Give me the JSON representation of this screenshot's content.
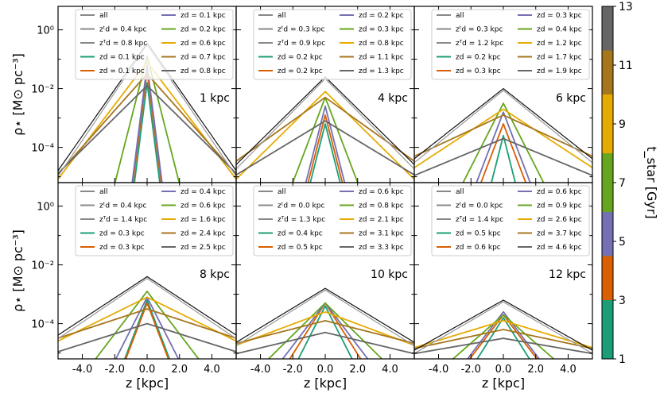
{
  "chart_data": {
    "type": "line",
    "xlabel": "z [kpc]",
    "ylabel": "ρ⋆ [M⊙ pc⁻³]",
    "xlim": [
      -5.5,
      5.5
    ],
    "ylim_log10": [
      -5.2,
      0.8
    ],
    "yscale": "log",
    "x_ticks": [
      -4,
      -2,
      0,
      2,
      4
    ],
    "x_tick_labels": [
      "-4.0",
      "-2.0",
      "0.0",
      "2.0",
      "4.0"
    ],
    "y_tick_labels": [
      "10⁰",
      "10⁻²",
      "10⁻⁴"
    ],
    "y_tick_exponents": [
      0,
      -2,
      -4
    ],
    "colorbar": {
      "label": "t_star [Gyr]",
      "ticks": [
        "1",
        "3",
        "5",
        "7",
        "9",
        "11",
        "13"
      ],
      "bands": [
        {
          "from": 1,
          "to": 3,
          "color": "#1b9e77"
        },
        {
          "from": 3,
          "to": 4.5,
          "color": "#d95f02"
        },
        {
          "from": 4.5,
          "to": 6,
          "color": "#7570b3"
        },
        {
          "from": 6,
          "to": 8,
          "color": "#66a61e"
        },
        {
          "from": 8,
          "to": 10,
          "color": "#e6ab02"
        },
        {
          "from": 10,
          "to": 11.5,
          "color": "#a6761d"
        },
        {
          "from": 11.5,
          "to": 13,
          "color": "#666666"
        }
      ]
    },
    "panels": [
      {
        "label": "1 kpc",
        "legend": [
          "all",
          "z_d^t = 0.4 kpc",
          "z_d^T = 0.8 kpc",
          "z_d = 0.1 kpc",
          "z_d = 0.1 kpc",
          "z_d = 0.1 kpc",
          "z_d = 0.2 kpc",
          "z_d = 0.6 kpc",
          "z_d = 0.7 kpc",
          "z_d = 0.8 kpc"
        ],
        "series": [
          {
            "name": "all",
            "zd": 0.55,
            "peak_log10": -0.45,
            "color": "#111111"
          },
          {
            "name": "z_d = 0.1 kpc",
            "zd": 0.1,
            "peak_log10": -1.8,
            "color": "#1b9e77"
          },
          {
            "name": "z_d = 0.1 kpc",
            "zd": 0.1,
            "peak_log10": -1.4,
            "color": "#d95f02"
          },
          {
            "name": "z_d = 0.1 kpc",
            "zd": 0.1,
            "peak_log10": -1.2,
            "color": "#7570b3"
          },
          {
            "name": "z_d = 0.2 kpc",
            "zd": 0.2,
            "peak_log10": -0.9,
            "color": "#66a61e"
          },
          {
            "name": "z_d = 0.6 kpc",
            "zd": 0.6,
            "peak_log10": -1.1,
            "color": "#e6ab02"
          },
          {
            "name": "z_d = 0.7 kpc",
            "zd": 0.7,
            "peak_log10": -1.5,
            "color": "#a6761d"
          },
          {
            "name": "z_d = 0.8 kpc",
            "zd": 0.8,
            "peak_log10": -1.9,
            "color": "#666666"
          }
        ]
      },
      {
        "label": "4 kpc",
        "legend": [
          "all",
          "z_d^t = 0.3 kpc",
          "z_d^T = 0.9 kpc",
          "z_d = 0.2 kpc",
          "z_d = 0.2 kpc",
          "z_d = 0.2 kpc",
          "z_d = 0.3 kpc",
          "z_d = 0.8 kpc",
          "z_d = 1.1 kpc",
          "z_d = 1.3 kpc"
        ],
        "series": [
          {
            "name": "all",
            "zd": 0.8,
            "peak_log10": -1.6,
            "color": "#111111"
          },
          {
            "name": "z_d = 0.2 kpc",
            "zd": 0.2,
            "peak_log10": -3.2,
            "color": "#1b9e77"
          },
          {
            "name": "z_d = 0.2 kpc",
            "zd": 0.2,
            "peak_log10": -2.9,
            "color": "#d95f02"
          },
          {
            "name": "z_d = 0.2 kpc",
            "zd": 0.2,
            "peak_log10": -2.6,
            "color": "#7570b3"
          },
          {
            "name": "z_d = 0.3 kpc",
            "zd": 0.3,
            "peak_log10": -2.3,
            "color": "#66a61e"
          },
          {
            "name": "z_d = 0.8 kpc",
            "zd": 0.8,
            "peak_log10": -2.1,
            "color": "#e6ab02"
          },
          {
            "name": "z_d = 1.1 kpc",
            "zd": 1.1,
            "peak_log10": -2.3,
            "color": "#a6761d"
          },
          {
            "name": "z_d = 1.3 kpc",
            "zd": 1.3,
            "peak_log10": -3.1,
            "color": "#666666"
          }
        ]
      },
      {
        "label": "6 kpc",
        "legend": [
          "all",
          "z_d^t = 0.3 kpc",
          "z_d^T = 1.2 kpc",
          "z_d = 0.2 kpc",
          "z_d = 0.3 kpc",
          "z_d = 0.3 kpc",
          "z_d = 0.4 kpc",
          "z_d = 1.2 kpc",
          "z_d = 1.7 kpc",
          "z_d = 1.9 kpc"
        ],
        "series": [
          {
            "name": "all",
            "zd": 1.0,
            "peak_log10": -2.0,
            "color": "#111111"
          },
          {
            "name": "z_d = 0.2 kpc",
            "zd": 0.2,
            "peak_log10": -3.6,
            "color": "#1b9e77"
          },
          {
            "name": "z_d = 0.3 kpc",
            "zd": 0.3,
            "peak_log10": -3.2,
            "color": "#d95f02"
          },
          {
            "name": "z_d = 0.3 kpc",
            "zd": 0.3,
            "peak_log10": -2.8,
            "color": "#7570b3"
          },
          {
            "name": "z_d = 0.4 kpc",
            "zd": 0.4,
            "peak_log10": -2.5,
            "color": "#66a61e"
          },
          {
            "name": "z_d = 1.2 kpc",
            "zd": 1.2,
            "peak_log10": -2.7,
            "color": "#e6ab02"
          },
          {
            "name": "z_d = 1.7 kpc",
            "zd": 1.7,
            "peak_log10": -2.9,
            "color": "#a6761d"
          },
          {
            "name": "z_d = 1.9 kpc",
            "zd": 1.9,
            "peak_log10": -3.7,
            "color": "#666666"
          }
        ]
      },
      {
        "label": "8 kpc",
        "legend": [
          "all",
          "z_d^t = 0.4 kpc",
          "z_d^T = 1.4 kpc",
          "z_d = 0.3 kpc",
          "z_d = 0.3 kpc",
          "z_d = 0.4 kpc",
          "z_d = 0.6 kpc",
          "z_d = 1.6 kpc",
          "z_d = 2.4 kpc",
          "z_d = 2.5 kpc"
        ],
        "series": [
          {
            "name": "all",
            "zd": 1.2,
            "peak_log10": -2.4,
            "color": "#111111"
          },
          {
            "name": "z_d = 0.3 kpc",
            "zd": 0.3,
            "peak_log10": -3.2,
            "color": "#1b9e77"
          },
          {
            "name": "z_d = 0.3 kpc",
            "zd": 0.3,
            "peak_log10": -3.3,
            "color": "#d95f02"
          },
          {
            "name": "z_d = 0.4 kpc",
            "zd": 0.4,
            "peak_log10": -3.1,
            "color": "#7570b3"
          },
          {
            "name": "z_d = 0.6 kpc",
            "zd": 0.6,
            "peak_log10": -2.9,
            "color": "#66a61e"
          },
          {
            "name": "z_d = 1.6 kpc",
            "zd": 1.6,
            "peak_log10": -3.1,
            "color": "#e6ab02"
          },
          {
            "name": "z_d = 2.4 kpc",
            "zd": 2.4,
            "peak_log10": -3.5,
            "color": "#a6761d"
          },
          {
            "name": "z_d = 2.5 kpc",
            "zd": 2.5,
            "peak_log10": -4.0,
            "color": "#666666"
          }
        ]
      },
      {
        "label": "10 kpc",
        "legend": [
          "all",
          "z_d^t = 0.0 kpc",
          "z_d^T = 1.3 kpc",
          "z_d = 0.4 kpc",
          "z_d = 0.5 kpc",
          "z_d = 0.6 kpc",
          "z_d = 0.8 kpc",
          "z_d = 2.1 kpc",
          "z_d = 3.1 kpc",
          "z_d = 3.3 kpc"
        ],
        "series": [
          {
            "name": "all",
            "zd": 1.3,
            "peak_log10": -2.8,
            "color": "#111111"
          },
          {
            "name": "z_d = 0.4 kpc",
            "zd": 0.4,
            "peak_log10": -3.4,
            "color": "#1b9e77"
          },
          {
            "name": "z_d = 0.5 kpc",
            "zd": 0.5,
            "peak_log10": -3.3,
            "color": "#d95f02"
          },
          {
            "name": "z_d = 0.6 kpc",
            "zd": 0.6,
            "peak_log10": -3.3,
            "color": "#7570b3"
          },
          {
            "name": "z_d = 0.8 kpc",
            "zd": 0.8,
            "peak_log10": -3.3,
            "color": "#66a61e"
          },
          {
            "name": "z_d = 2.1 kpc",
            "zd": 2.1,
            "peak_log10": -3.6,
            "color": "#e6ab02"
          },
          {
            "name": "z_d = 3.1 kpc",
            "zd": 3.1,
            "peak_log10": -3.9,
            "color": "#a6761d"
          },
          {
            "name": "z_d = 3.3 kpc",
            "zd": 3.3,
            "peak_log10": -4.3,
            "color": "#666666"
          }
        ]
      },
      {
        "label": "12 kpc",
        "legend": [
          "all",
          "z_d^t = 0.0 kpc",
          "z_d^T = 1.4 kpc",
          "z_d = 0.5 kpc",
          "z_d = 0.6 kpc",
          "z_d = 0.6 kpc",
          "z_d = 0.9 kpc",
          "z_d = 2.6 kpc",
          "z_d = 3.7 kpc",
          "z_d = 4.6 kpc"
        ],
        "series": [
          {
            "name": "all",
            "zd": 1.4,
            "peak_log10": -3.2,
            "color": "#111111"
          },
          {
            "name": "z_d = 0.5 kpc",
            "zd": 0.5,
            "peak_log10": -3.8,
            "color": "#1b9e77"
          },
          {
            "name": "z_d = 0.6 kpc",
            "zd": 0.6,
            "peak_log10": -3.7,
            "color": "#d95f02"
          },
          {
            "name": "z_d = 0.6 kpc",
            "zd": 0.6,
            "peak_log10": -3.6,
            "color": "#7570b3"
          },
          {
            "name": "z_d = 0.9 kpc",
            "zd": 0.9,
            "peak_log10": -3.7,
            "color": "#66a61e"
          },
          {
            "name": "z_d = 2.6 kpc",
            "zd": 2.6,
            "peak_log10": -3.9,
            "color": "#e6ab02"
          },
          {
            "name": "z_d = 3.7 kpc",
            "zd": 3.7,
            "peak_log10": -4.2,
            "color": "#a6761d"
          },
          {
            "name": "z_d = 4.6 kpc",
            "zd": 4.6,
            "peak_log10": -4.5,
            "color": "#666666"
          }
        ]
      }
    ]
  }
}
